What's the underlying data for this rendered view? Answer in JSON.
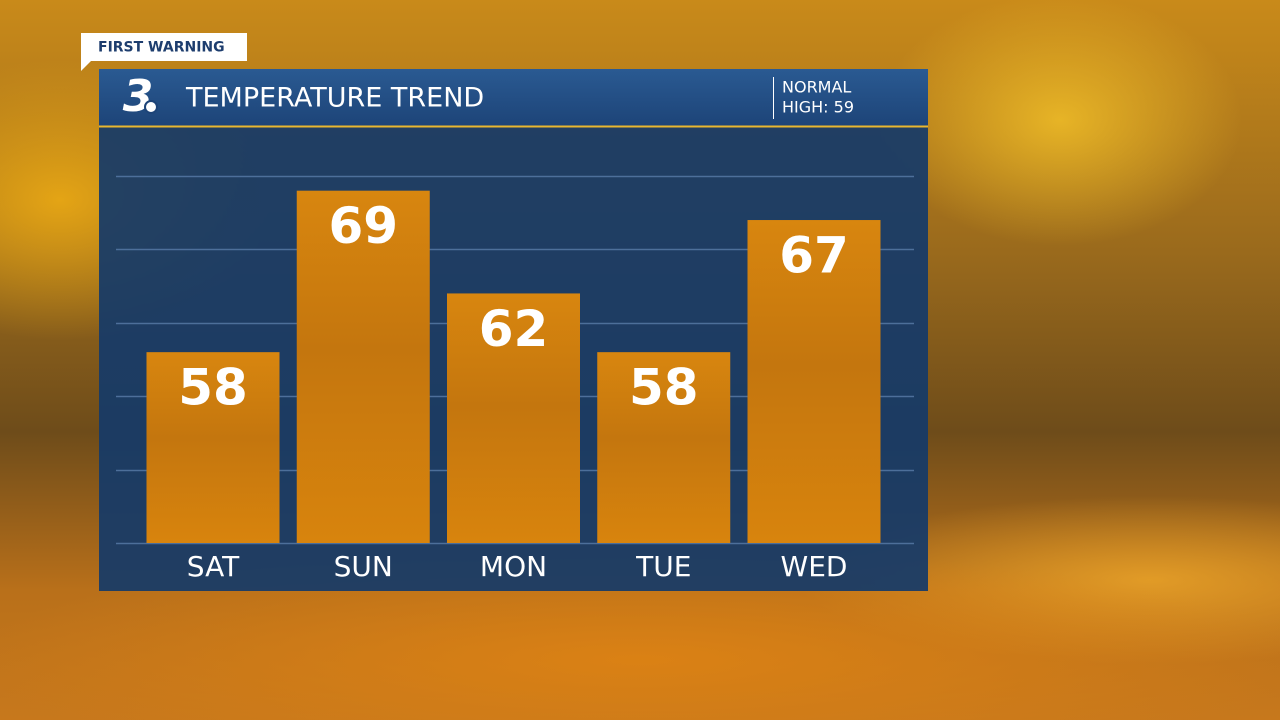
{
  "banner": "FIRST WARNING",
  "logo": "3",
  "normal_label": "NORMAL",
  "normal_high": "HIGH: 59",
  "chart_data": {
    "type": "bar",
    "title": "TEMPERATURE TREND",
    "categories": [
      "SAT",
      "SUN",
      "MON",
      "TUE",
      "WED"
    ],
    "values": [
      58,
      69,
      62,
      58,
      67
    ],
    "color": "#d07f12",
    "ylim": [
      45,
      70
    ],
    "yticks": [
      45,
      50,
      55,
      60,
      65,
      70
    ],
    "grid": true
  }
}
